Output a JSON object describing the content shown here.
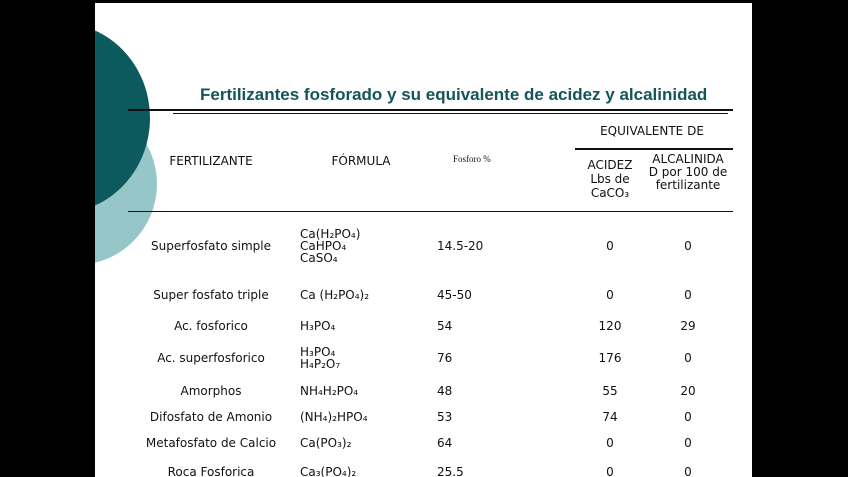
{
  "title": "Fertilizantes fosforado y su equivalente de acidez y alcalinidad",
  "headers": {
    "fertilizante": "FERTILIZANTE",
    "formula": "FÓRMULA",
    "fosforo": "Fosforo %",
    "equivalente": "EQUIVALENTE DE",
    "acidez": "ACIDEZ Lbs de CaCO₃",
    "alcalinidad": "ALCALINIDA D por 100 de fertilizante"
  },
  "rows": [
    {
      "name": "Superfosfato simple",
      "formula": [
        "Ca(H₂PO₄)",
        "CaHPO₄",
        "CaSO₄"
      ],
      "fosforo": "14.5-20",
      "acidez": "0",
      "alcalinidad": "0"
    },
    {
      "name": "Super fosfato triple",
      "formula": [
        "Ca (H₂PO₄)₂"
      ],
      "fosforo": "45-50",
      "acidez": "0",
      "alcalinidad": "0"
    },
    {
      "name": "Ac. fosforico",
      "formula": [
        "H₃PO₄"
      ],
      "fosforo": "54",
      "acidez": "120",
      "alcalinidad": "29"
    },
    {
      "name": "Ac. superfosforico",
      "formula": [
        "H₃PO₄",
        "H₄P₂O₇"
      ],
      "fosforo": "76",
      "acidez": "176",
      "alcalinidad": "0"
    },
    {
      "name": "Amorphos",
      "formula": [
        "NH₄H₂PO₄"
      ],
      "fosforo": "48",
      "acidez": "55",
      "alcalinidad": "20"
    },
    {
      "name": "Difosfato de Amonio",
      "formula": [
        "(NH₄)₂HPO₄"
      ],
      "fosforo": "53",
      "acidez": "74",
      "alcalinidad": "0"
    },
    {
      "name": "Metafosfato de Calcio",
      "formula": [
        "Ca(PO₃)₂"
      ],
      "fosforo": "64",
      "acidez": "0",
      "alcalinidad": "0"
    },
    {
      "name": "Roca Fosforica",
      "formula": [
        "Ca₃(PO₄)₂"
      ],
      "fosforo": "25.5",
      "acidez": "0",
      "alcalinidad": "0"
    }
  ]
}
